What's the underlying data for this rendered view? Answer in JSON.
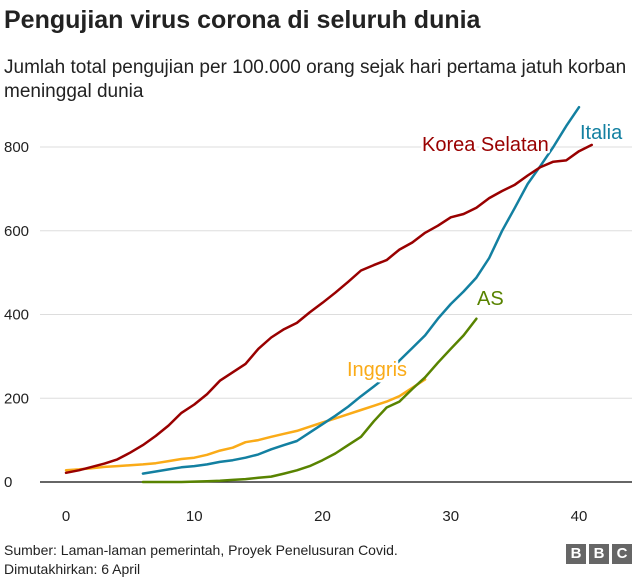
{
  "chart_data": {
    "type": "line",
    "title": "Pengujian virus corona di seluruh dunia",
    "subtitle": "Jumlah total pengujian per 100.000 orang sejak hari pertama jatuh korban meninggal dunia",
    "xlabel": "",
    "ylabel": "",
    "xlim": [
      0,
      42
    ],
    "ylim": [
      0,
      900
    ],
    "x_ticks": [
      0,
      10,
      20,
      30,
      40
    ],
    "y_ticks": [
      0,
      200,
      400,
      600,
      800
    ],
    "grid": "horizontal",
    "series": [
      {
        "name": "Korea Selatan",
        "color": "#990000",
        "x": [
          0,
          1,
          2,
          3,
          4,
          5,
          6,
          7,
          8,
          9,
          10,
          11,
          12,
          13,
          14,
          15,
          16,
          17,
          18,
          19,
          20,
          21,
          22,
          23,
          24,
          25,
          26,
          27,
          28,
          29,
          30,
          31,
          32,
          33,
          34,
          35,
          36,
          37,
          38,
          39,
          40,
          41
        ],
        "values": [
          22,
          28,
          36,
          44,
          54,
          70,
          88,
          110,
          135,
          165,
          185,
          210,
          242,
          262,
          282,
          318,
          345,
          365,
          380,
          405,
          428,
          452,
          478,
          505,
          518,
          530,
          555,
          572,
          595,
          612,
          632,
          640,
          655,
          678,
          695,
          710,
          732,
          752,
          765,
          768,
          790,
          805
        ]
      },
      {
        "name": "Italia",
        "color": "#1380A1",
        "x": [
          6,
          7,
          8,
          9,
          10,
          11,
          12,
          13,
          14,
          15,
          16,
          17,
          18,
          19,
          20,
          21,
          22,
          23,
          24,
          25,
          26,
          27,
          28,
          29,
          30,
          31,
          32,
          33,
          34,
          35,
          36,
          37,
          38,
          39,
          40
        ],
        "values": [
          20,
          25,
          30,
          35,
          38,
          42,
          48,
          52,
          58,
          66,
          78,
          88,
          98,
          118,
          138,
          158,
          180,
          205,
          228,
          252,
          290,
          320,
          350,
          390,
          425,
          455,
          488,
          535,
          600,
          655,
          712,
          755,
          800,
          850,
          895
        ]
      },
      {
        "name": "Inggris",
        "color": "#FAAB18",
        "x": [
          0,
          1,
          2,
          3,
          4,
          5,
          6,
          7,
          8,
          9,
          10,
          11,
          12,
          13,
          14,
          15,
          16,
          17,
          18,
          19,
          20,
          21,
          22,
          23,
          24,
          25,
          26,
          27,
          28
        ],
        "values": [
          28,
          30,
          33,
          36,
          38,
          40,
          42,
          45,
          50,
          55,
          58,
          65,
          75,
          82,
          95,
          100,
          108,
          115,
          122,
          132,
          142,
          152,
          162,
          172,
          182,
          192,
          205,
          225,
          245
        ]
      },
      {
        "name": "AS",
        "color": "#588300",
        "x": [
          6,
          7,
          8,
          9,
          10,
          11,
          12,
          13,
          14,
          15,
          16,
          17,
          18,
          19,
          20,
          21,
          22,
          23,
          24,
          25,
          26,
          27,
          28,
          29,
          30,
          31,
          32
        ],
        "values": [
          0,
          0,
          0,
          0,
          1,
          2,
          3,
          5,
          7,
          10,
          13,
          20,
          28,
          38,
          52,
          68,
          88,
          108,
          145,
          178,
          192,
          222,
          250,
          285,
          318,
          350,
          390
        ]
      }
    ],
    "annotations": [
      {
        "text": "Korea Selatan",
        "series": "Korea Selatan"
      },
      {
        "text": "Italia",
        "series": "Italia"
      },
      {
        "text": "Inggris",
        "series": "Inggris"
      },
      {
        "text": "AS",
        "series": "AS"
      }
    ]
  },
  "footer": {
    "source": "Sumber: Laman-laman pemerintah, Proyek Penelusuran Covid.",
    "updated": "Dimutakhirkan: 6 April"
  },
  "logo": {
    "letters": [
      "B",
      "B",
      "C"
    ],
    "color": "#666666"
  }
}
